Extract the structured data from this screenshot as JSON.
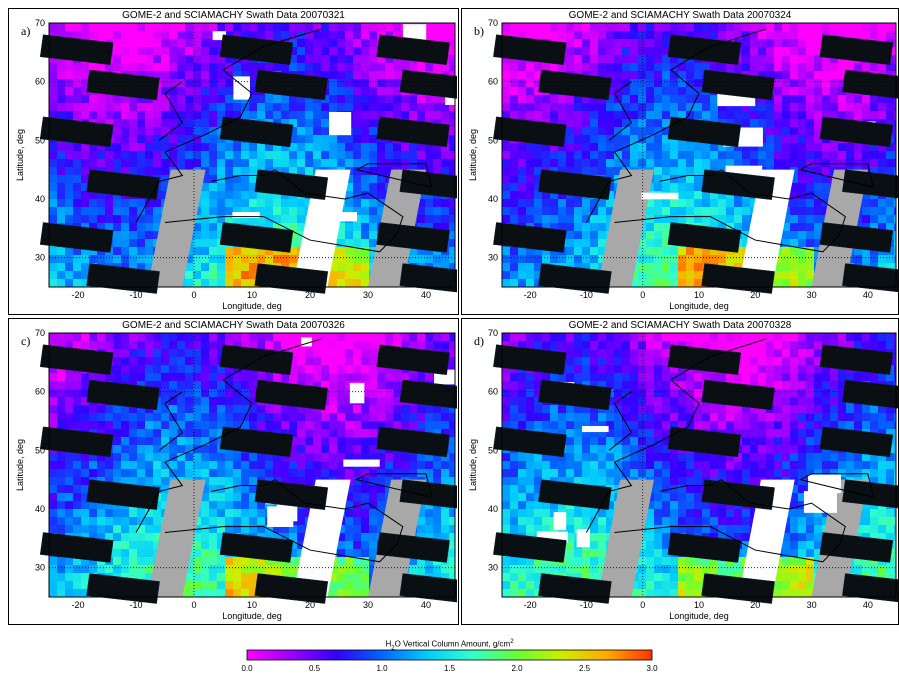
{
  "panels": [
    {
      "title": "GOME-2 and SCIAMACHY Swath Data 20070321",
      "letter": "a)"
    },
    {
      "title": "GOME-2 and SCIAMACHY Swath Data 20070324",
      "letter": "b)"
    },
    {
      "title": "GOME-2 and SCIAMACHY Swath Data 20070326",
      "letter": "c)"
    },
    {
      "title": "GOME-2 and SCIAMACHY Swath Data 20070328",
      "letter": "d)"
    }
  ],
  "axes": {
    "xlabel": "Longitude, deg",
    "ylabel": "Latitude, deg",
    "xticks": [
      "-20",
      "-10",
      "0",
      "10",
      "20",
      "30",
      "40"
    ],
    "yticks": [
      "70",
      "60",
      "50",
      "40",
      "30"
    ]
  },
  "colorbar": {
    "title_pre": "H",
    "title_sub": "2",
    "title_mid": "O Vertical Column Amount, g/cm",
    "title_sup": "2",
    "ticks": [
      "0.0",
      "0.5",
      "1.0",
      "1.5",
      "2.0",
      "2.5",
      "3.0"
    ],
    "colors": [
      "#ff00ff",
      "#9900ff",
      "#3300ff",
      "#0066ff",
      "#00ccff",
      "#33ffcc",
      "#66ff33",
      "#ccee00",
      "#ffaa00",
      "#ff3300"
    ]
  },
  "chart_data": {
    "type": "heatmap",
    "xlabel": "Longitude, deg",
    "ylabel": "Latitude, deg",
    "xlim": [
      -25,
      45
    ],
    "ylim": [
      25,
      70
    ],
    "xticks": [
      -20,
      -10,
      0,
      10,
      20,
      30,
      40
    ],
    "yticks": [
      30,
      40,
      50,
      60,
      70
    ],
    "color_scale": {
      "label": "H2O Vertical Column Amount, g/cm2",
      "range": [
        0.0,
        3.0
      ],
      "ticks": [
        0.0,
        0.5,
        1.0,
        1.5,
        2.0,
        2.5,
        3.0
      ]
    },
    "dates": [
      "20070321",
      "20070324",
      "20070326",
      "20070328"
    ]
  }
}
